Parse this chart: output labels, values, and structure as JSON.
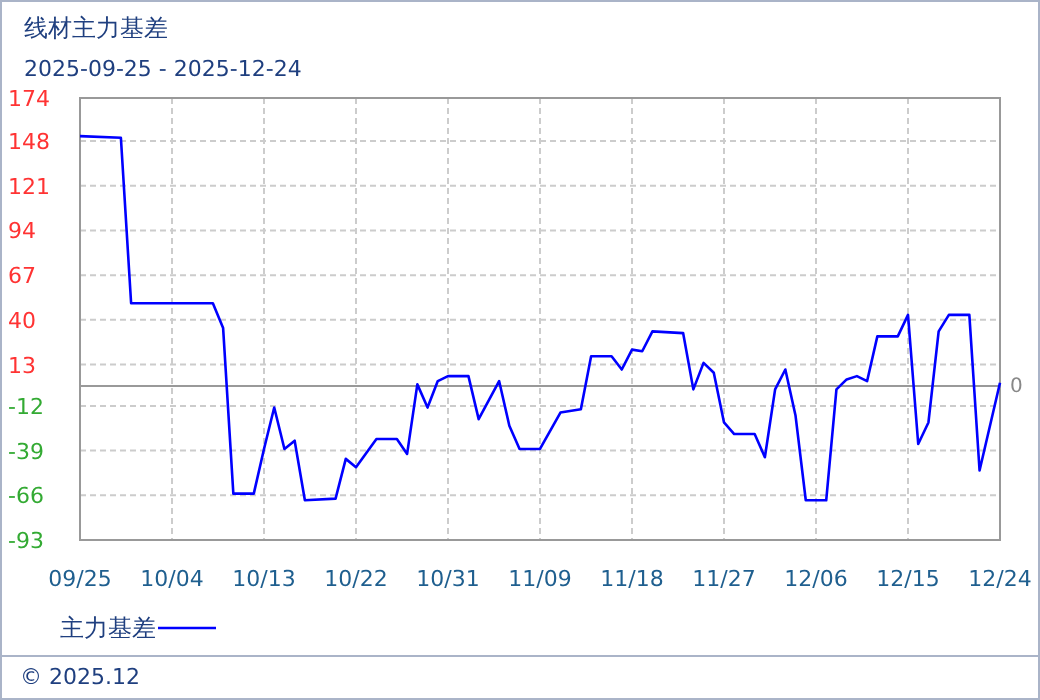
{
  "chart_data": {
    "type": "line",
    "title": "线材主力基差",
    "subtitle": "2025-09-25 - 2025-12-24",
    "x": [
      "2025-09-25",
      "2025-09-29",
      "2025-09-30",
      "2025-10-08",
      "2025-10-09",
      "2025-10-10",
      "2025-10-12",
      "2025-10-13",
      "2025-10-14",
      "2025-10-15",
      "2025-10-16",
      "2025-10-17",
      "2025-10-20",
      "2025-10-21",
      "2025-10-22",
      "2025-10-24",
      "2025-10-26",
      "2025-10-27",
      "2025-10-28",
      "2025-10-29",
      "2025-10-30",
      "2025-10-31",
      "2025-11-02",
      "2025-11-03",
      "2025-11-05",
      "2025-11-06",
      "2025-11-07",
      "2025-11-09",
      "2025-11-11",
      "2025-11-13",
      "2025-11-14",
      "2025-11-16",
      "2025-11-17",
      "2025-11-18",
      "2025-11-19",
      "2025-11-20",
      "2025-11-23",
      "2025-11-24",
      "2025-11-25",
      "2025-11-26",
      "2025-11-27",
      "2025-11-28",
      "2025-11-30",
      "2025-12-01",
      "2025-12-02",
      "2025-12-03",
      "2025-12-04",
      "2025-12-05",
      "2025-12-07",
      "2025-12-08",
      "2025-12-09",
      "2025-12-10",
      "2025-12-11",
      "2025-12-12",
      "2025-12-14",
      "2025-12-15",
      "2025-12-16",
      "2025-12-17",
      "2025-12-18",
      "2025-12-19",
      "2025-12-21",
      "2025-12-22",
      "2025-12-24"
    ],
    "series": [
      {
        "name": "主力基差",
        "color": "#0000ff",
        "values": [
          151,
          150,
          50,
          50,
          35,
          -65,
          -65,
          -38,
          -13,
          -38,
          -33,
          -69,
          -68,
          -44,
          -49,
          -32,
          -32,
          -41,
          1,
          -13,
          3,
          6,
          6,
          -20,
          3,
          -24,
          -38,
          -38,
          -16,
          -14,
          18,
          18,
          10,
          22,
          21,
          33,
          32,
          -2,
          14,
          8,
          -22,
          -29,
          -29,
          -43,
          -2,
          10,
          -18,
          -69,
          -69,
          -2,
          4,
          6,
          3,
          30,
          30,
          43,
          -35,
          -22,
          33,
          43,
          43,
          -51,
          2
        ]
      }
    ],
    "xlim": [
      "2025-09-25",
      "2025-12-24"
    ],
    "xticks": [
      {
        "value": "2025-09-25",
        "label": "09/25"
      },
      {
        "value": "2025-10-04",
        "label": "10/04"
      },
      {
        "value": "2025-10-13",
        "label": "10/13"
      },
      {
        "value": "2025-10-22",
        "label": "10/22"
      },
      {
        "value": "2025-10-31",
        "label": "10/31"
      },
      {
        "value": "2025-11-09",
        "label": "11/09"
      },
      {
        "value": "2025-11-18",
        "label": "11/18"
      },
      {
        "value": "2025-11-27",
        "label": "11/27"
      },
      {
        "value": "2025-12-06",
        "label": "12/06"
      },
      {
        "value": "2025-12-15",
        "label": "12/15"
      },
      {
        "value": "2025-12-24",
        "label": "12/24"
      }
    ],
    "ylim": [
      -93,
      174
    ],
    "yticks": [
      -93,
      -66,
      -39,
      -12,
      13,
      40,
      67,
      94,
      121,
      148,
      174
    ],
    "ref_lines": [
      {
        "axis": "y",
        "value": 0,
        "label": "0",
        "color": "#999999"
      }
    ],
    "grid": true,
    "legend": "bottom left",
    "marker": "none",
    "line_style": "solid",
    "annotations": [
      "© 2025.12"
    ]
  }
}
